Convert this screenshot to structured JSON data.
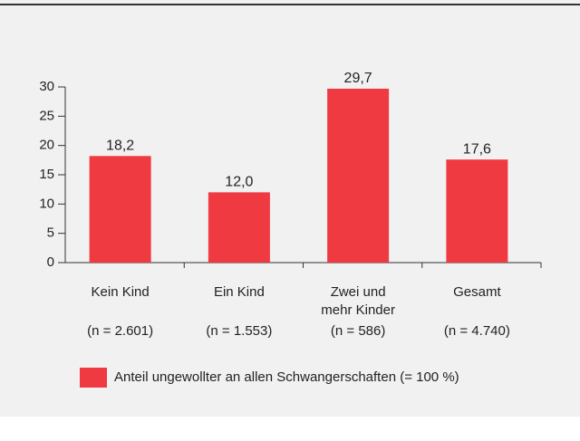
{
  "chart_data": {
    "type": "bar",
    "categories": [
      [
        "Kein Kind"
      ],
      [
        "Ein Kind"
      ],
      [
        "Zwei und",
        "mehr Kinder"
      ],
      [
        "Gesamt"
      ]
    ],
    "sample_sizes": [
      "(n = 2.601)",
      "(n = 1.553)",
      "(n = 586)",
      "(n = 4.740)"
    ],
    "series": [
      {
        "name": "Anteil ungewollter an allen Schwangerschaften (= 100 %)",
        "color": "#ef3a42",
        "values": [
          18.2,
          12.0,
          29.7,
          17.6
        ],
        "value_labels": [
          "18,2",
          "12,0",
          "29,7",
          "17,6"
        ]
      }
    ],
    "ylim": [
      0,
      30
    ],
    "yticks": [
      0,
      5,
      10,
      15,
      20,
      25,
      30
    ]
  }
}
